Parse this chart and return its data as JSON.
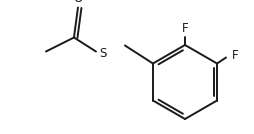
{
  "background_color": "#ffffff",
  "line_color": "#1a1a1a",
  "line_width": 1.4,
  "text_color": "#1a1a1a",
  "font_size": 8.5,
  "figsize": [
    2.54,
    1.34
  ],
  "dpi": 100,
  "labels": {
    "F1": "F",
    "F2": "F",
    "S": "S",
    "O": "O"
  }
}
